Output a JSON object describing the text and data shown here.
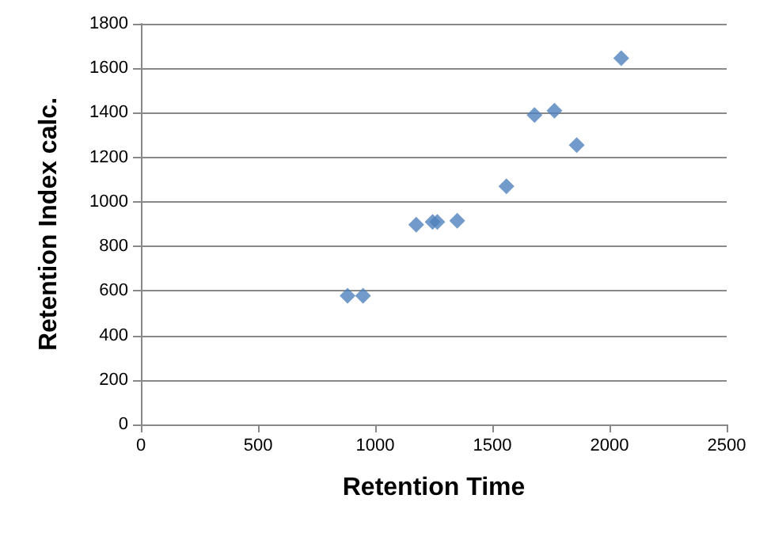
{
  "chart_data": {
    "type": "scatter",
    "xlabel": "Retention Time",
    "ylabel": "Retention Index calc.",
    "x": [
      882,
      948,
      1175,
      1245,
      1265,
      1350,
      1560,
      1680,
      1765,
      1860,
      2050
    ],
    "values": [
      578,
      578,
      897,
      910,
      910,
      915,
      1070,
      1390,
      1410,
      1255,
      1645
    ],
    "color": "#4f81bd",
    "marker": "diamond",
    "xlim": [
      0,
      2500
    ],
    "xticks": [
      0,
      500,
      1000,
      1500,
      2000,
      2500
    ],
    "ylim": [
      0,
      1800
    ],
    "yticks": [
      0,
      200,
      400,
      600,
      800,
      1000,
      1200,
      1400,
      1600,
      1800
    ],
    "grid": "y"
  }
}
